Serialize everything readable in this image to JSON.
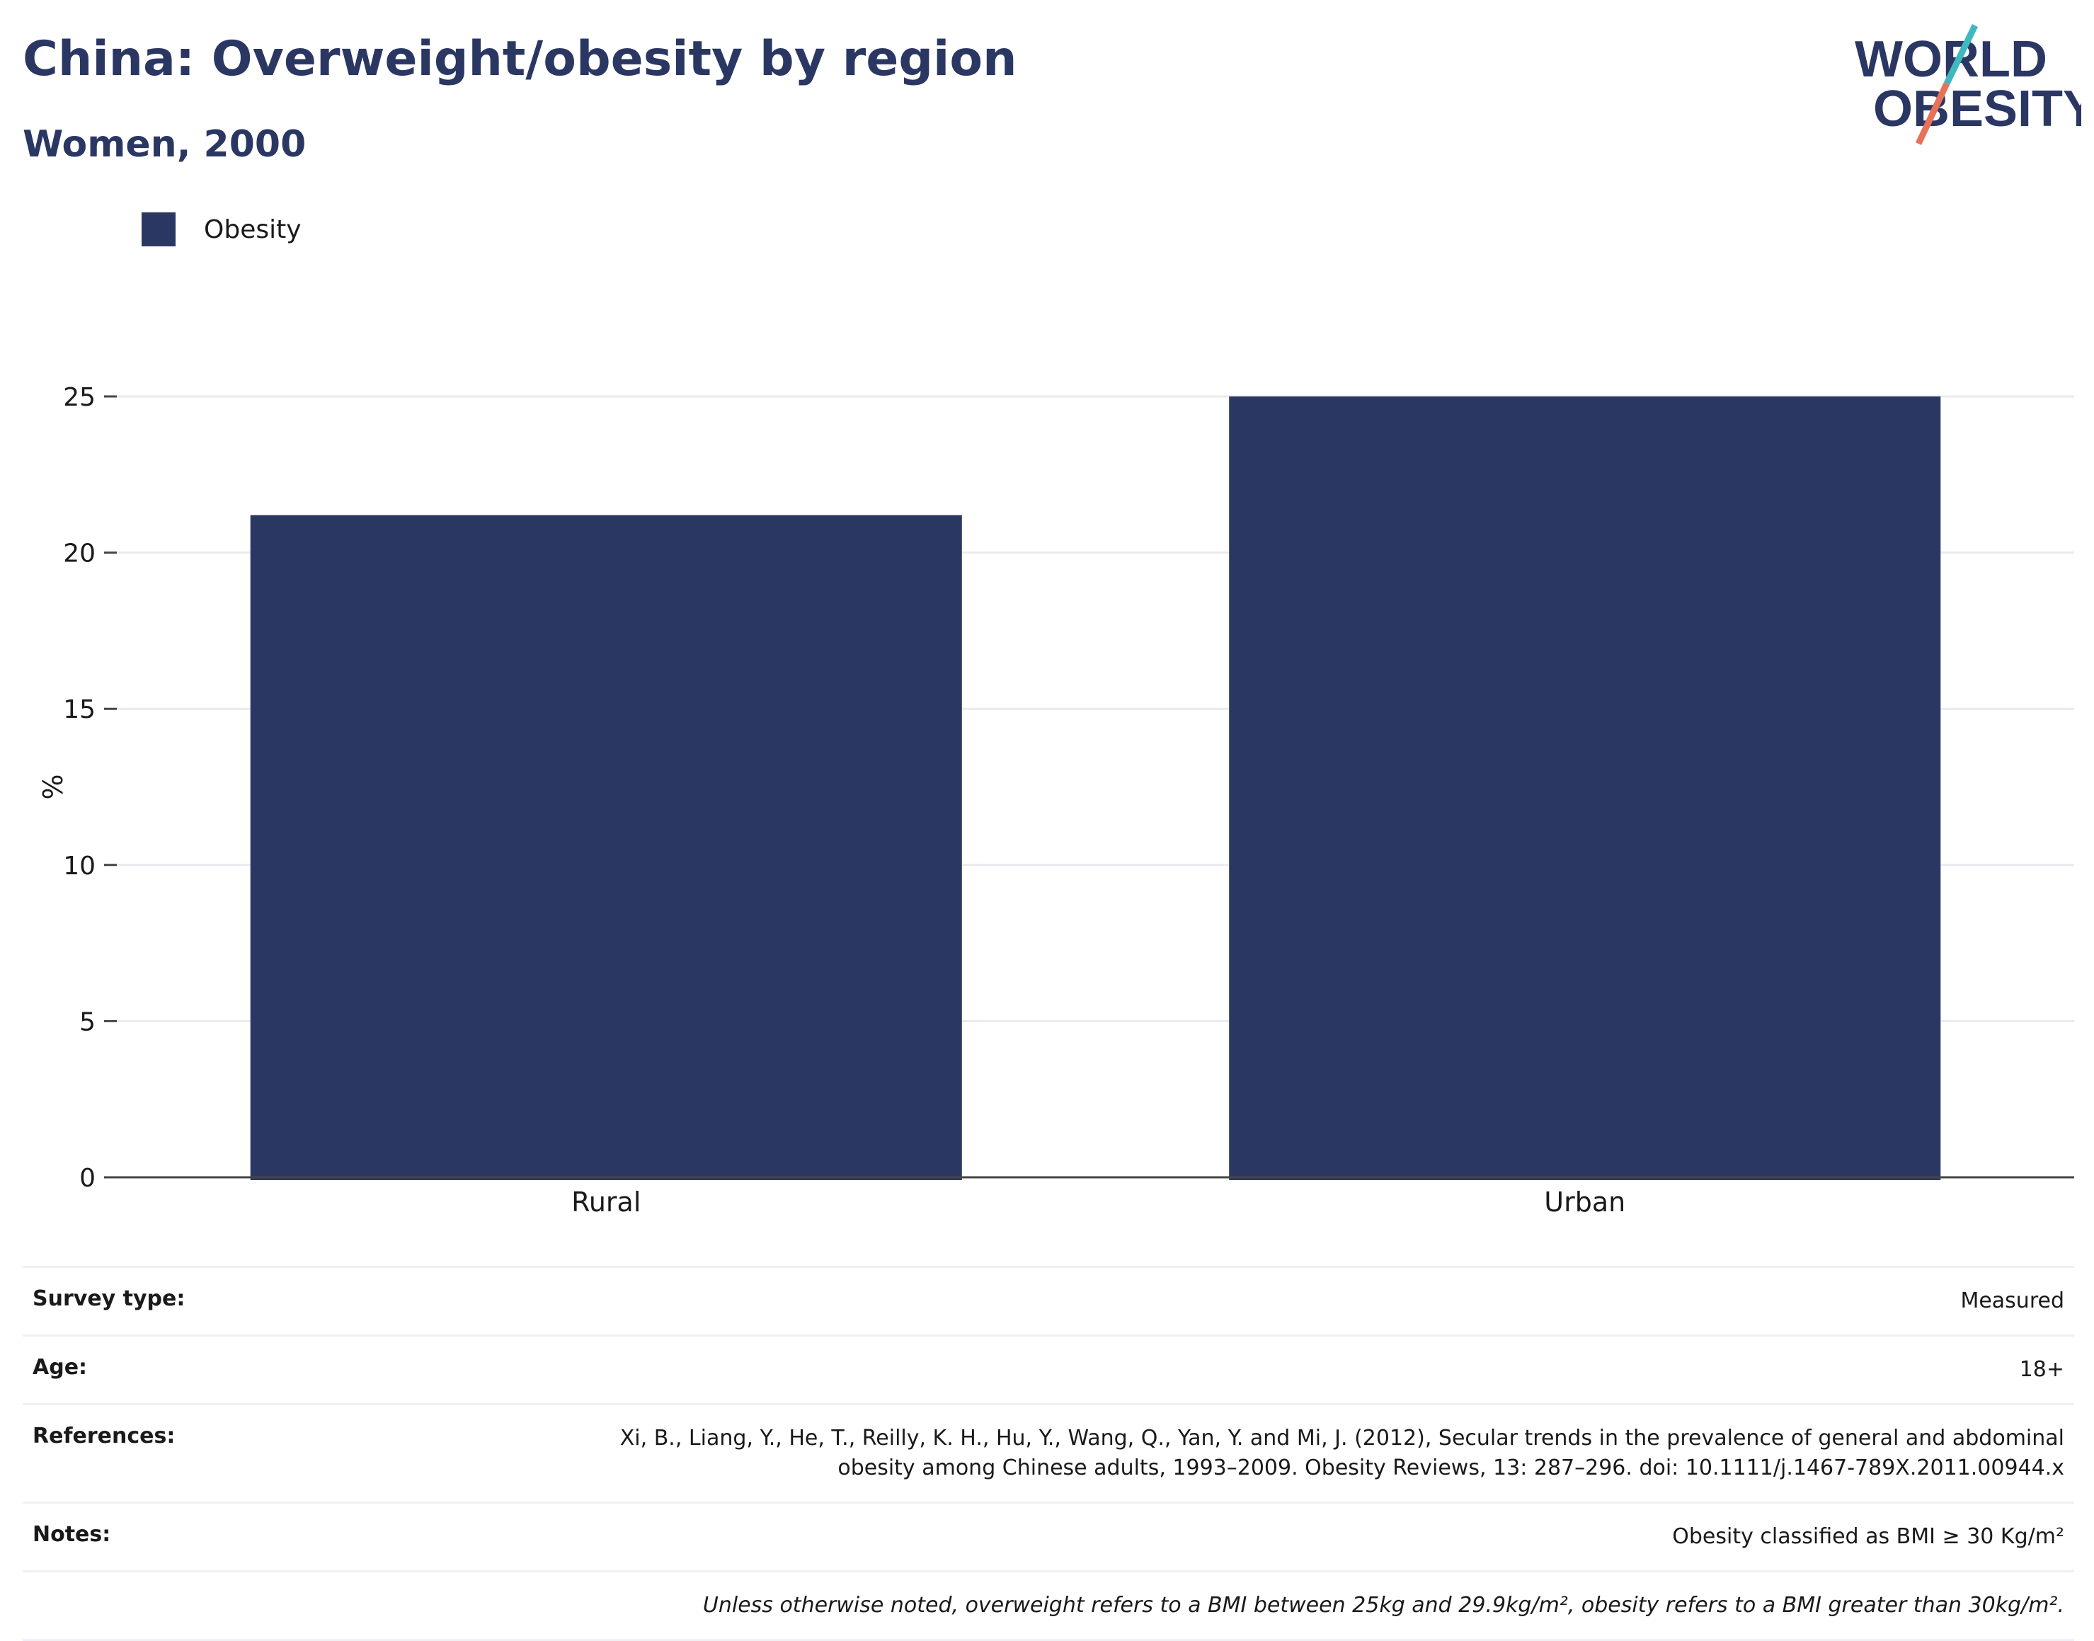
{
  "header": {
    "title": "China: Overweight/obesity by region",
    "subtitle": "Women, 2000"
  },
  "logo": {
    "line1": "WORLD",
    "line2": "OBESITY",
    "slash_colors": [
      "#3fb8c0",
      "#e8715a"
    ]
  },
  "colors": {
    "bar": "#2b3763",
    "text": "#2b3763",
    "grid": "#e8eaef"
  },
  "chart_data": {
    "type": "bar",
    "categories": [
      "Rural",
      "Urban"
    ],
    "series": [
      {
        "name": "Obesity",
        "values": [
          21.2,
          25.0
        ]
      }
    ],
    "xlabel": "",
    "ylabel": "%",
    "ylim": [
      0,
      25
    ],
    "yticks": [
      0,
      5,
      10,
      15,
      20,
      25
    ],
    "grid": true,
    "legend_position": "top-left"
  },
  "info": {
    "survey_type_label": "Survey type:",
    "survey_type": "Measured",
    "age_label": "Age:",
    "age": "18+",
    "references_label": "References:",
    "references_line1": "Xi, B., Liang, Y., He, T., Reilly, K. H., Hu, Y., Wang, Q., Yan, Y. and Mi, J. (2012), Secular trends in the prevalence of general and abdominal",
    "references_line2": "obesity among Chinese adults, 1993–2009. Obesity Reviews, 13: 287–296. doi: 10.1111/j.1467-789X.2011.00944.x",
    "notes_label": "Notes:",
    "notes": "Obesity classified as BMI ≥ 30 Kg/m²",
    "disclaimer": "Unless otherwise noted, overweight refers to a BMI between 25kg and 29.9kg/m², obesity refers to a BMI greater than 30kg/m²."
  }
}
